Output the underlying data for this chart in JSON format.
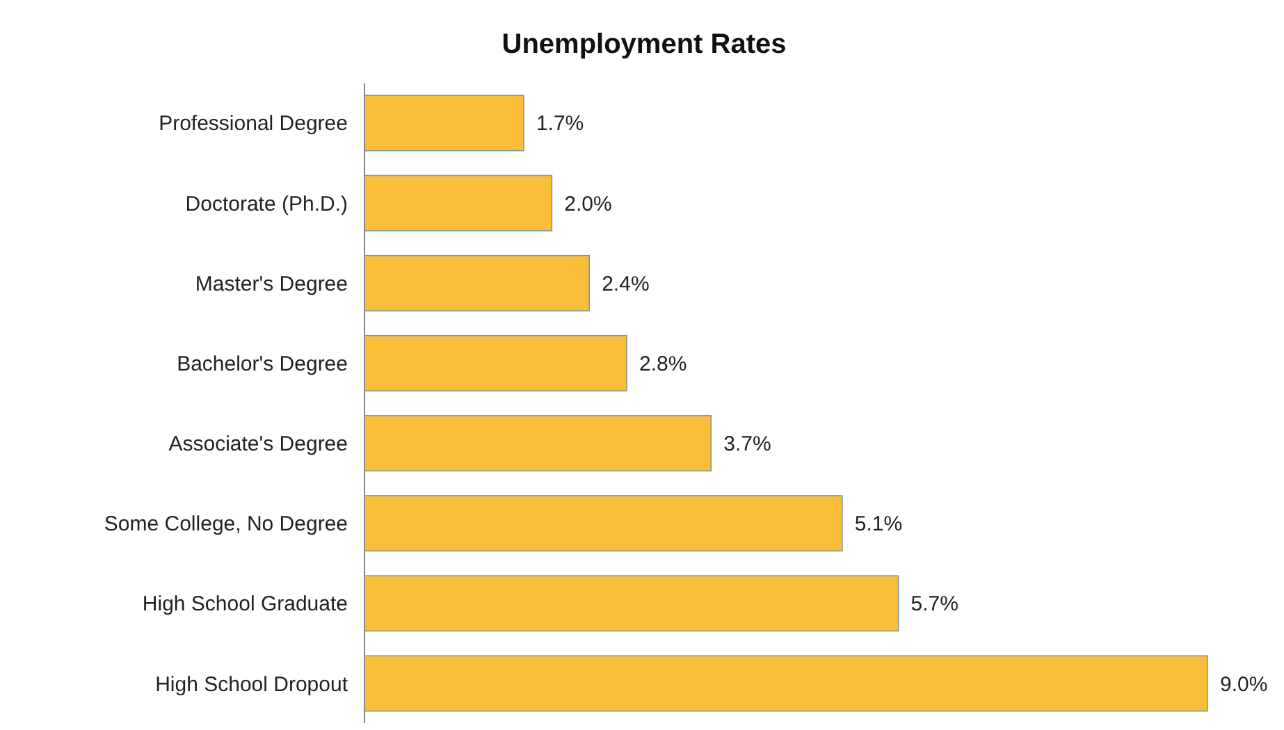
{
  "chart_data": {
    "type": "bar",
    "orientation": "horizontal",
    "title": "Unemployment Rates",
    "categories": [
      "Professional Degree",
      "Doctorate (Ph.D.)",
      "Master's Degree",
      "Bachelor's Degree",
      "Associate's Degree",
      "Some College, No Degree",
      "High School Graduate",
      "High School Dropout"
    ],
    "values": [
      1.7,
      2.0,
      2.4,
      2.8,
      3.7,
      5.1,
      5.7,
      9.0
    ],
    "value_labels": [
      "1.7%",
      "2.0%",
      "2.4%",
      "2.8%",
      "3.7%",
      "5.1%",
      "5.7%",
      "9.0%"
    ],
    "color": "#fbbe3a"
  }
}
